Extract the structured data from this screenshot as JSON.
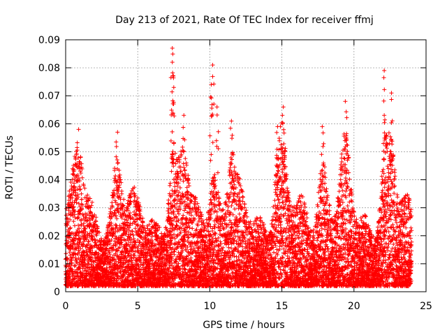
{
  "chart_data": {
    "type": "scatter",
    "title": "Day 213 of 2021, Rate Of TEC Index for receiver ffmj",
    "xlabel": "GPS time / hours",
    "ylabel": "ROTI / TECUs",
    "xlim": [
      0,
      25
    ],
    "ylim": [
      0,
      0.09
    ],
    "grid": true,
    "xticks": [
      0,
      5,
      10,
      15,
      20,
      25
    ],
    "xtick_labels": [
      "0",
      "5",
      "10",
      "15",
      "20",
      "25"
    ],
    "yticks": [
      0,
      0.01,
      0.02,
      0.03,
      0.04,
      0.05,
      0.06,
      0.07,
      0.08,
      0.09
    ],
    "ytick_labels": [
      "0",
      "0.01",
      "0.02",
      "0.03",
      "0.04",
      "0.05",
      "0.06",
      "0.07",
      "0.08",
      "0.09"
    ],
    "marker": "+",
    "marker_color": "#ff0000",
    "x_data_range": [
      0,
      24
    ],
    "notes": "Dense cloud of points: bulk between ~0.002 and ~0.03 TECUs; peak clusters listed below.",
    "peaks": [
      {
        "x": 0.9,
        "y": 0.058
      },
      {
        "x": 3.6,
        "y": 0.057
      },
      {
        "x": 7.4,
        "y": 0.087
      },
      {
        "x": 7.4,
        "y": 0.082
      },
      {
        "x": 7.5,
        "y": 0.073
      },
      {
        "x": 8.2,
        "y": 0.063
      },
      {
        "x": 10.2,
        "y": 0.081
      },
      {
        "x": 10.1,
        "y": 0.074
      },
      {
        "x": 10.5,
        "y": 0.066
      },
      {
        "x": 11.5,
        "y": 0.061
      },
      {
        "x": 14.7,
        "y": 0.059
      },
      {
        "x": 15.1,
        "y": 0.066
      },
      {
        "x": 17.8,
        "y": 0.059
      },
      {
        "x": 19.4,
        "y": 0.068
      },
      {
        "x": 22.1,
        "y": 0.079
      },
      {
        "x": 22.6,
        "y": 0.071
      },
      {
        "x": 22.1,
        "y": 0.063
      }
    ]
  }
}
